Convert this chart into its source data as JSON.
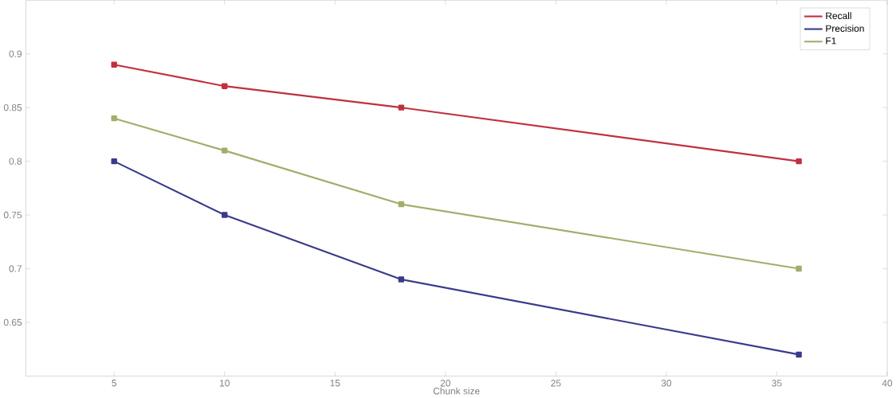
{
  "chart_data": {
    "type": "line",
    "xlabel": "Chunk size",
    "x": [
      5,
      10,
      18,
      36
    ],
    "series": [
      {
        "name": "Recall",
        "color": "#c0303f",
        "values": [
          0.89,
          0.87,
          0.85,
          0.8
        ]
      },
      {
        "name": "Precision",
        "color": "#3a3a8a",
        "values": [
          0.8,
          0.75,
          0.69,
          0.62
        ]
      },
      {
        "name": "F1",
        "color": "#a3ad6a",
        "values": [
          0.84,
          0.81,
          0.76,
          0.7
        ]
      }
    ],
    "xlim": [
      1,
      40
    ],
    "ylim": [
      0.6,
      0.95
    ],
    "xticks": [
      5,
      10,
      15,
      20,
      25,
      30,
      35,
      40
    ],
    "yticks": [
      0.65,
      0.7,
      0.75,
      0.8,
      0.85,
      0.9
    ],
    "legend": "top right",
    "marker": "square",
    "grid": false
  }
}
